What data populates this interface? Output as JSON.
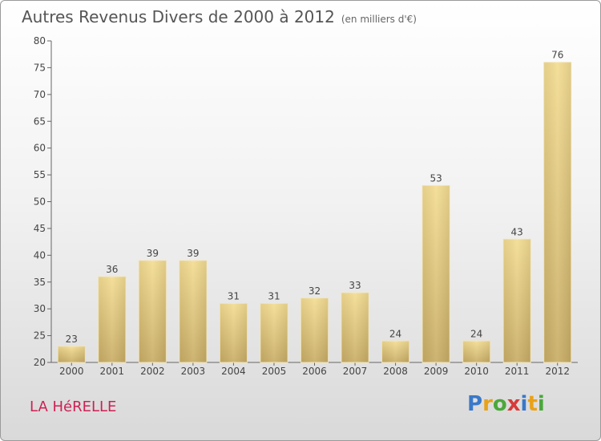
{
  "title": "Autres Revenus Divers de 2000 à 2012",
  "subtitle": "(en milliers d'€)",
  "commune": "LA HéRELLE",
  "logo": {
    "letters": [
      "P",
      "r",
      "o",
      "x",
      "i",
      "t",
      "i"
    ],
    "colors": [
      "#3a78c9",
      "#e8a21a",
      "#4aa83a",
      "#d83a3a",
      "#3a78c9",
      "#e8a21a",
      "#4aa83a"
    ]
  },
  "chart_data": {
    "type": "bar",
    "categories": [
      "2000",
      "2001",
      "2002",
      "2003",
      "2004",
      "2005",
      "2006",
      "2007",
      "2008",
      "2009",
      "2010",
      "2011",
      "2012"
    ],
    "values": [
      23,
      36,
      39,
      39,
      31,
      31,
      32,
      33,
      24,
      53,
      24,
      43,
      76
    ],
    "ylim": [
      20,
      80
    ],
    "yticks": [
      20,
      25,
      30,
      35,
      40,
      45,
      50,
      55,
      60,
      65,
      70,
      75,
      80
    ],
    "bar_color": "#e7cc7f",
    "grid": false,
    "data_labels": true
  }
}
